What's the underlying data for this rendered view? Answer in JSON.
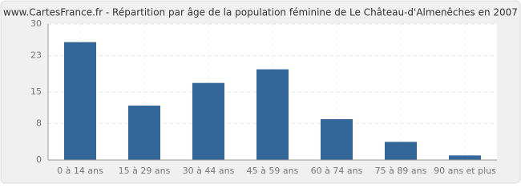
{
  "chart_data": {
    "type": "bar",
    "title": "www.CartesFrance.fr - Répartition par âge de la population féminine de Le Château-d'Almenêches en 2007",
    "categories": [
      "0 à 14 ans",
      "15 à 29 ans",
      "30 à 44 ans",
      "45 à 59 ans",
      "60 à 74 ans",
      "75 à 89 ans",
      "90 ans et plus"
    ],
    "values": [
      26,
      12,
      17,
      20,
      9,
      4,
      1
    ],
    "color": "#336699",
    "ylim": [
      0,
      30
    ],
    "yticks": [
      0,
      8,
      15,
      23,
      30
    ],
    "grid": true
  }
}
